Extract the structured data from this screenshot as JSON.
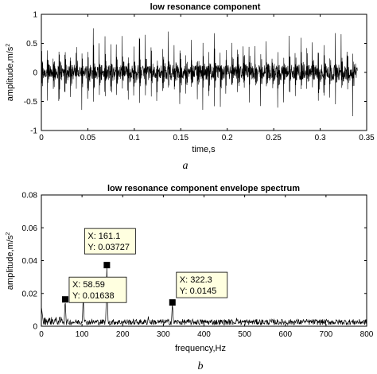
{
  "chart_data": [
    {
      "type": "line",
      "title": "low resonance component",
      "xlabel": "time,s",
      "ylabel": "amplitude,m/s",
      "ylabel_sup": "2",
      "panel_label": "a",
      "xlim": [
        0,
        0.35
      ],
      "ylim": [
        -1,
        1
      ],
      "xticks": [
        "0",
        "0.05",
        "0.1",
        "0.15",
        "0.2",
        "0.25",
        "0.3",
        "0.35"
      ],
      "xtick_values": [
        0,
        0.05,
        0.1,
        0.15,
        0.2,
        0.25,
        0.3,
        0.35
      ],
      "yticks": [
        "-1",
        "-0.5",
        "0",
        "0.5",
        "1"
      ],
      "ytick_values": [
        -1,
        -0.5,
        0,
        0.5,
        1
      ],
      "signal": {
        "impulse_period_s": 0.0062,
        "duration_s": 0.34,
        "peak_amplitude": 0.8,
        "noise_amplitude": 0.12
      },
      "grid": false
    },
    {
      "type": "line",
      "title": "low resonance component envelope spectrum",
      "xlabel": "frequency,Hz",
      "ylabel": "amplitude,m/s",
      "ylabel_sup": "2",
      "panel_label": "b",
      "xlim": [
        0,
        800
      ],
      "ylim": [
        0,
        0.08
      ],
      "xticks": [
        "0",
        "100",
        "200",
        "300",
        "400",
        "500",
        "600",
        "700",
        "800"
      ],
      "xtick_values": [
        0,
        100,
        200,
        300,
        400,
        500,
        600,
        700,
        800
      ],
      "yticks": [
        "0",
        "0.02",
        "0.04",
        "0.06",
        "0.08"
      ],
      "ytick_values": [
        0,
        0.02,
        0.04,
        0.06,
        0.08
      ],
      "peaks": [
        {
          "x": 58.59,
          "y": 0.01638
        },
        {
          "x": 103,
          "y": 0.0175
        },
        {
          "x": 161.1,
          "y": 0.03727
        },
        {
          "x": 263,
          "y": 0.006
        },
        {
          "x": 322.3,
          "y": 0.0145
        },
        {
          "x": 480,
          "y": 0.005
        },
        {
          "x": 645,
          "y": 0.004
        }
      ],
      "datatips": [
        {
          "x_label": "X: 58.59",
          "y_label": "Y: 0.01638",
          "x": 58.59,
          "y": 0.01638
        },
        {
          "x_label": "X: 161.1",
          "y_label": "Y: 0.03727",
          "x": 161.1,
          "y": 0.03727
        },
        {
          "x_label": "X: 322.3",
          "y_label": "Y: 0.0145",
          "x": 322.3,
          "y": 0.0145
        }
      ],
      "grid": false
    }
  ]
}
